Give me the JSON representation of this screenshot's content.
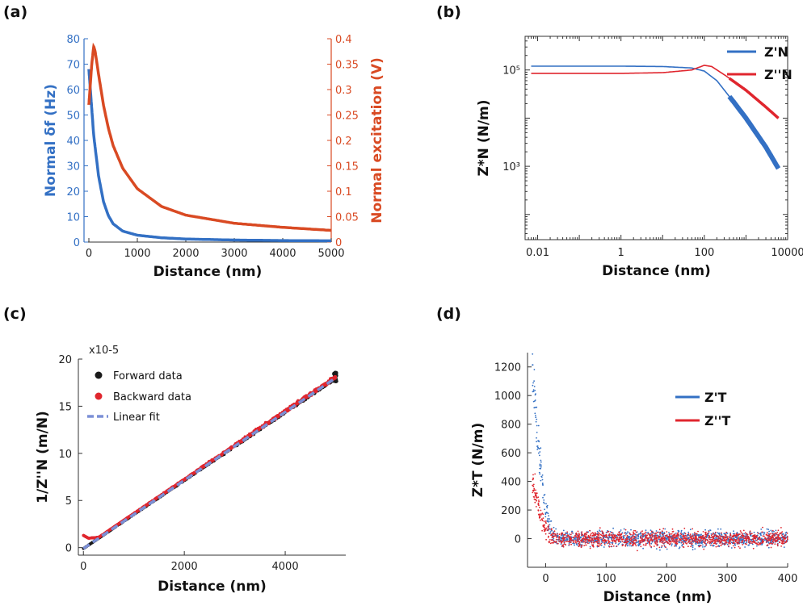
{
  "panels": {
    "a": {
      "label": "(a)"
    },
    "b": {
      "label": "(b)"
    },
    "c": {
      "label": "(c)"
    },
    "d": {
      "label": "(d)"
    }
  },
  "colors": {
    "blue": "#3370c4",
    "orange": "#d94a23",
    "red": "#e0262e",
    "black": "#1a1a1a",
    "fit": "#7b8fd6"
  },
  "chart_data": [
    {
      "id": "a",
      "type": "line",
      "xlabel": "Distance (nm)",
      "ylabel": "Normal δf (Hz)",
      "ylabel2": "Normal excitation (V)",
      "xlim": [
        -100,
        5000
      ],
      "ylim": [
        0,
        80
      ],
      "ylim2": [
        0,
        0.4
      ],
      "xticks": [
        0,
        1000,
        2000,
        3000,
        4000,
        5000
      ],
      "yticks": [
        0,
        10,
        20,
        30,
        40,
        50,
        60,
        70,
        80
      ],
      "yticks2": [
        "0",
        "0.05",
        "0.1",
        "0.15",
        "0.2",
        "0.25",
        "0.3",
        "0.35",
        "0.4"
      ],
      "series": [
        {
          "name": "Normal δf",
          "axis": "left",
          "color": "#3370c4",
          "x": [
            0,
            50,
            100,
            200,
            300,
            400,
            500,
            700,
            1000,
            1500,
            2000,
            3000,
            4000,
            5000
          ],
          "y": [
            68,
            55,
            42,
            26,
            16,
            10.5,
            7.2,
            4.3,
            2.7,
            1.7,
            1.2,
            0.8,
            0.6,
            0.5
          ]
        },
        {
          "name": "Normal excitation",
          "axis": "right",
          "color": "#d94a23",
          "x": [
            0,
            30,
            60,
            100,
            130,
            200,
            300,
            400,
            500,
            700,
            1000,
            1500,
            2000,
            3000,
            4000,
            5000
          ],
          "y": [
            0.27,
            0.31,
            0.35,
            0.385,
            0.375,
            0.33,
            0.27,
            0.225,
            0.19,
            0.145,
            0.105,
            0.07,
            0.053,
            0.037,
            0.029,
            0.023
          ]
        }
      ]
    },
    {
      "id": "b",
      "type": "line",
      "xscale": "log",
      "yscale": "log",
      "xlabel": "Distance (nm)",
      "ylabel": "Z*N (N/m)",
      "xlim": [
        0.005,
        10000
      ],
      "ylim": [
        30,
        500000
      ],
      "xticks": [
        {
          "v": 0.01,
          "t": "0.01"
        },
        {
          "v": 1,
          "t": "1"
        },
        {
          "v": 100,
          "t": "100"
        },
        {
          "v": 10000,
          "t": "10000"
        }
      ],
      "yticks": [
        {
          "v": 1000,
          "t": "10³"
        },
        {
          "v": 100000,
          "t": "10⁵"
        }
      ],
      "legend": [
        "Z'N",
        "Z''N"
      ],
      "series": [
        {
          "name": "Z'N",
          "color": "#3370c4",
          "x": [
            0.007,
            0.1,
            1,
            10,
            50,
            100,
            200,
            500,
            1000,
            3000,
            6000
          ],
          "y": [
            120000,
            120000,
            120000,
            118000,
            110000,
            95000,
            60000,
            22000,
            10000,
            2500,
            900
          ]
        },
        {
          "name": "Z''N",
          "color": "#e0262e",
          "x": [
            0.007,
            0.1,
            1,
            10,
            50,
            100,
            150,
            300,
            1000,
            3000,
            6000
          ],
          "y": [
            85000,
            85000,
            85000,
            88000,
            100000,
            125000,
            118000,
            80000,
            38000,
            17000,
            10000
          ]
        }
      ]
    },
    {
      "id": "c",
      "type": "scatter",
      "xlabel": "Distance (nm)",
      "ylabel": "1/Z''N (m/N)",
      "multiplier": "x10-5",
      "xlim": [
        -100,
        5200
      ],
      "ylim": [
        -0.8,
        20
      ],
      "xticks": [
        0,
        2000,
        4000
      ],
      "yticks": [
        0,
        5,
        10,
        15,
        20
      ],
      "legend": [
        "Forward data",
        "Backward data",
        "Linear fit"
      ],
      "series": [
        {
          "name": "Forward data",
          "color": "#1a1a1a",
          "x": [
            0,
            5000
          ],
          "y": [
            -0.1,
            18.0
          ]
        },
        {
          "name": "Backward data",
          "color": "#e0262e",
          "x": [
            0,
            100,
            200,
            300,
            5000
          ],
          "y": [
            1.2,
            0.9,
            0.95,
            1.0,
            18.0
          ]
        },
        {
          "name": "Linear fit",
          "color": "#7b8fd6",
          "x": [
            0,
            5000
          ],
          "y": [
            -0.1,
            18.0
          ]
        }
      ]
    },
    {
      "id": "d",
      "type": "scatter",
      "xlabel": "Distance (nm)",
      "ylabel": "Z*T (N/m)",
      "xlim": [
        -30,
        400
      ],
      "ylim": [
        -200,
        1300
      ],
      "xticks": [
        0,
        100,
        200,
        300,
        400
      ],
      "yticks": [
        0,
        200,
        400,
        600,
        800,
        1000,
        1200
      ],
      "legend": [
        "Z'T",
        "Z''T"
      ],
      "series": [
        {
          "name": "Z'T",
          "color": "#3370c4",
          "x": [
            -20,
            -10,
            0,
            10,
            400
          ],
          "y": [
            1100,
            550,
            200,
            30,
            0
          ]
        },
        {
          "name": "Z''T",
          "color": "#e0262e",
          "x": [
            -20,
            -10,
            0,
            10,
            400
          ],
          "y": [
            380,
            180,
            60,
            10,
            0
          ]
        }
      ]
    }
  ]
}
